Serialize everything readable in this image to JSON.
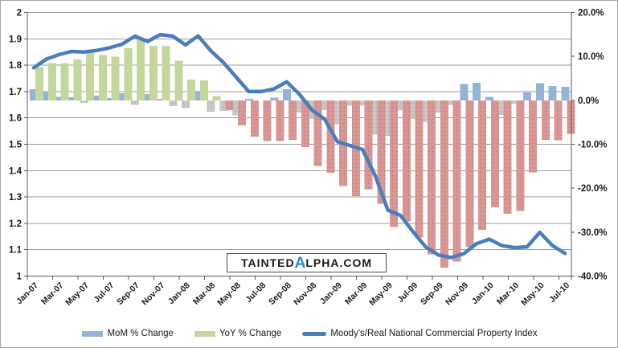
{
  "watermark": {
    "part1": "Tainted",
    "alpha": "α",
    "part2": "lpha.com"
  },
  "legend": {
    "items": [
      {
        "label": "MoM % Change",
        "type": "bar",
        "color": "#95B3D7"
      },
      {
        "label": "YoY % Change",
        "type": "bar",
        "color": "#C3D69B"
      },
      {
        "label": "Moody's/Real National Commercial Property Index",
        "type": "line",
        "color": "#4A7EBB"
      }
    ]
  },
  "chart_data": {
    "type": "combo",
    "title": "",
    "grid": true,
    "legend_position": "bottom",
    "categories": [
      "Jan-07",
      "Feb-07",
      "Mar-07",
      "Apr-07",
      "May-07",
      "Jun-07",
      "Jul-07",
      "Aug-07",
      "Sep-07",
      "Oct-07",
      "Nov-07",
      "Dec-07",
      "Jan-08",
      "Feb-08",
      "Mar-08",
      "Apr-08",
      "May-08",
      "Jun-08",
      "Jul-08",
      "Aug-08",
      "Sep-08",
      "Oct-08",
      "Nov-08",
      "Dec-08",
      "Jan-09",
      "Feb-09",
      "Mar-09",
      "Apr-09",
      "May-09",
      "Jun-09",
      "Jul-09",
      "Aug-09",
      "Sep-09",
      "Oct-09",
      "Nov-09",
      "Dec-09",
      "Jan-10",
      "Feb-10",
      "Mar-10",
      "Apr-10",
      "May-10",
      "Jun-10",
      "Jul-10"
    ],
    "x_axis_tick_labels": [
      "Jan-07",
      "Mar-07",
      "May-07",
      "Jul-07",
      "Sep-07",
      "Nov-07",
      "Jan-08",
      "Mar-08",
      "May-08",
      "Jul-08",
      "Sep-08",
      "Nov-08",
      "Jan-09",
      "Mar-09",
      "May-09",
      "Jul-09",
      "Sep-09",
      "Nov-09",
      "Jan-10",
      "Mar-10",
      "May-10",
      "Jul-10"
    ],
    "left_axis": {
      "min": 1,
      "max": 2,
      "tick_step": 0.1,
      "tick_labels": [
        "2",
        "1.9",
        "1.8",
        "1.7",
        "1.6",
        "1.5",
        "1.4",
        "1.3",
        "1.2",
        "1.1",
        "1"
      ]
    },
    "right_axis": {
      "min": -40,
      "max": 20,
      "tick_step": 10,
      "tick_labels": [
        "20.0%",
        "10.0%",
        "0.0%",
        "-10.0%",
        "-20.0%",
        "-30.0%",
        "-40.0%"
      ]
    },
    "series": [
      {
        "name": "MoM % Change",
        "chart_type": "bar",
        "axis": "right",
        "unit": "%",
        "color_positive": "#95B3D7",
        "color_negative": "#C8C8C8",
        "values": [
          2.5,
          2.1,
          0.8,
          0.7,
          -0.6,
          1.1,
          0.5,
          1.6,
          -1.0,
          1.4,
          0.3,
          -1.3,
          -1.8,
          1.9,
          -2.6,
          -2.4,
          -3.4,
          0.3,
          0.0,
          0.6,
          2.5,
          -2.8,
          -4.2,
          -2.2,
          -5.4,
          -1.2,
          -1.2,
          -7.8,
          -8.1,
          -2.3,
          -4.2,
          -5.0,
          -2.8,
          -1.0,
          3.7,
          4.0,
          0.8,
          -3.3,
          -0.8,
          1.8,
          3.9,
          3.3,
          3.1
        ]
      },
      {
        "name": "YoY % Change",
        "chart_type": "bar",
        "axis": "right",
        "unit": "%",
        "color_positive": "#C3D69B",
        "color_negative": "#D99694",
        "values": [
          7.6,
          8.5,
          8.5,
          9.3,
          11.4,
          10.3,
          9.9,
          11.9,
          13.9,
          12.4,
          12.4,
          9.0,
          4.7,
          4.5,
          1.0,
          -2.2,
          -5.7,
          -8.3,
          -9.3,
          -9.3,
          -9.0,
          -10.6,
          -14.9,
          -16.5,
          -19.5,
          -21.8,
          -20.2,
          -23.5,
          -28.8,
          -27.6,
          -31.2,
          -35.1,
          -38.1,
          -36.7,
          -33.4,
          -29.5,
          -24.4,
          -25.8,
          -25.2,
          -16.4,
          -9.0,
          -9.1,
          -7.6
        ]
      },
      {
        "name": "Moody's/Real National Commercial Property Index",
        "chart_type": "line",
        "axis": "left",
        "color": "#4A7EBB",
        "values": [
          1.79,
          1.823,
          1.84,
          1.852,
          1.85,
          1.856,
          1.866,
          1.88,
          1.91,
          1.89,
          1.916,
          1.91,
          1.877,
          1.911,
          1.855,
          1.81,
          1.755,
          1.7,
          1.7,
          1.71,
          1.737,
          1.69,
          1.63,
          1.595,
          1.51,
          1.495,
          1.48,
          1.38,
          1.25,
          1.23,
          1.167,
          1.11,
          1.08,
          1.07,
          1.085,
          1.123,
          1.14,
          1.116,
          1.108,
          1.111,
          1.166,
          1.116,
          1.086
        ]
      }
    ]
  }
}
